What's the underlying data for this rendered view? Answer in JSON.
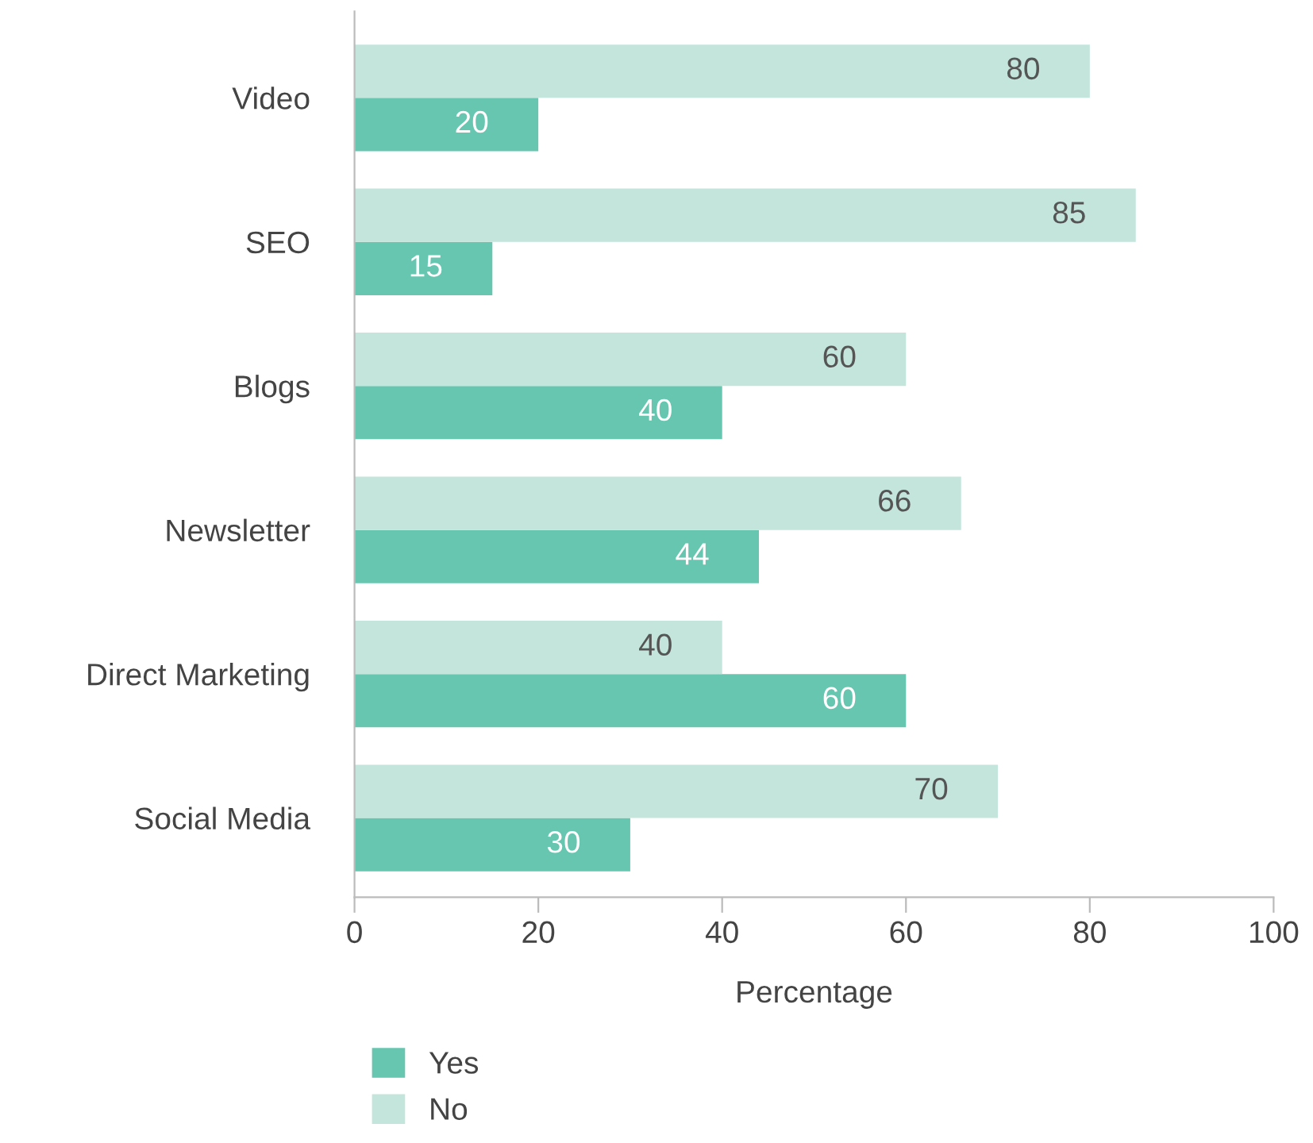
{
  "chart_data": {
    "type": "bar",
    "orientation": "horizontal",
    "xlabel": "Percentage",
    "categories": [
      "Video",
      "SEO",
      "Blogs",
      "Newsletter",
      "Direct Marketing",
      "Social Media"
    ],
    "series": [
      {
        "name": "Yes",
        "color": "#66c6b0",
        "values": [
          20,
          15,
          40,
          44,
          60,
          30
        ]
      },
      {
        "name": "No",
        "color": "#c3e5dc",
        "values": [
          80,
          85,
          60,
          66,
          40,
          70
        ]
      }
    ],
    "xlim": [
      0,
      100
    ],
    "xticks": [
      0,
      20,
      40,
      60,
      80,
      100
    ],
    "data_labels": true,
    "grid": false,
    "legend": "bottom left"
  }
}
